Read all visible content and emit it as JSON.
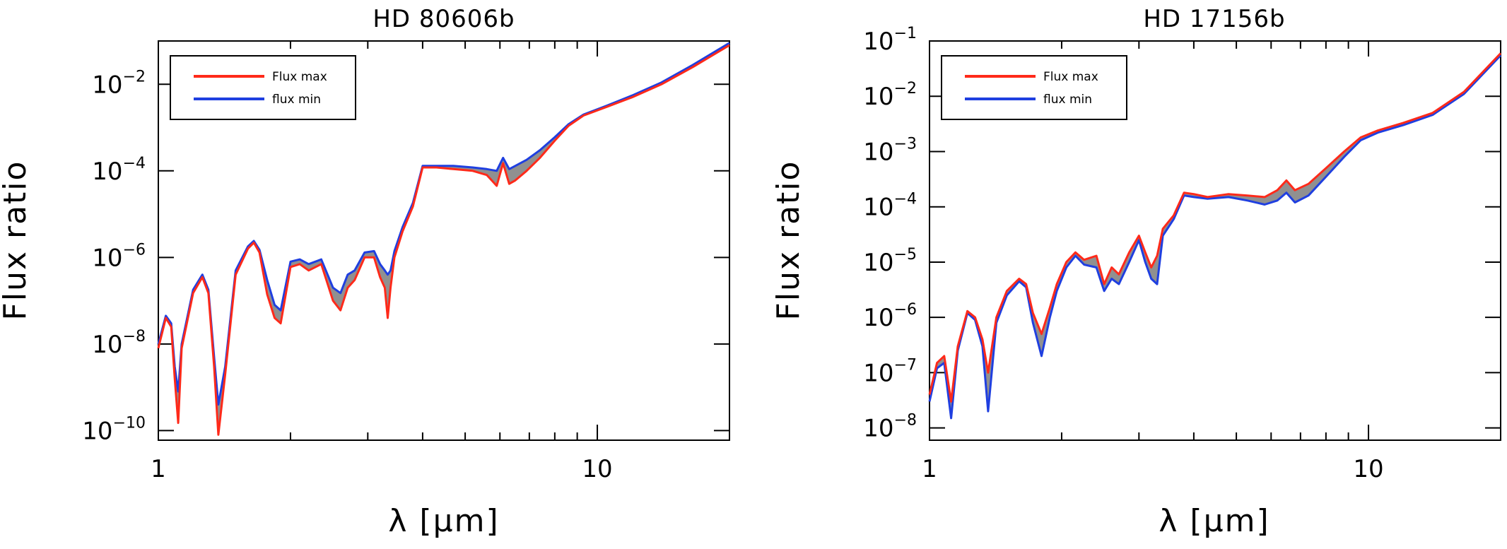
{
  "chart_data": [
    {
      "type": "line",
      "title": "HD 80606b",
      "xlabel": "λ [μm]",
      "ylabel": "Flux ratio",
      "xscale": "log",
      "yscale": "log",
      "xlim": [
        1,
        20
      ],
      "ylim": [
        6e-11,
        0.1
      ],
      "xticks": [
        {
          "value": 1,
          "label": "1"
        },
        {
          "value": 10,
          "label": "10"
        }
      ],
      "yticks": [
        {
          "value": 1e-10,
          "base": "10",
          "exp": "−10"
        },
        {
          "value": 1e-08,
          "base": "10",
          "exp": "−8"
        },
        {
          "value": 1e-06,
          "base": "10",
          "exp": "−6"
        },
        {
          "value": 0.0001,
          "base": "10",
          "exp": "−4"
        },
        {
          "value": 0.01,
          "base": "10",
          "exp": "−2"
        }
      ],
      "legend": {
        "position": "top-left",
        "entries": [
          {
            "label": "Flux max",
            "color": "#ff2a1a"
          },
          {
            "label": "flux min",
            "color": "#1f3fe0"
          }
        ]
      },
      "series": [
        {
          "name": "Flux max",
          "color": "#ff2a1a",
          "x": [
            1.0,
            1.04,
            1.07,
            1.09,
            1.11,
            1.13,
            1.2,
            1.26,
            1.3,
            1.34,
            1.37,
            1.42,
            1.5,
            1.6,
            1.65,
            1.7,
            1.77,
            1.84,
            1.9,
            2.0,
            2.1,
            2.2,
            2.35,
            2.5,
            2.6,
            2.7,
            2.8,
            2.95,
            3.1,
            3.2,
            3.28,
            3.33,
            3.38,
            3.45,
            3.6,
            3.8,
            4.0,
            4.3,
            4.7,
            5.2,
            5.6,
            5.9,
            6.1,
            6.3,
            6.5,
            6.9,
            7.4,
            8.0,
            8.6,
            9.3,
            10.5,
            12.0,
            14.0,
            16.5,
            20.0
          ],
          "y": [
            8e-09,
            4e-08,
            2.5e-08,
            1.6e-09,
            1.5e-10,
            8e-09,
            1.5e-07,
            3.5e-07,
            1.5e-07,
            3e-09,
            8e-11,
            2e-09,
            4e-07,
            1.6e-06,
            2.2e-06,
            1.3e-06,
            1.4e-07,
            4e-08,
            3e-08,
            6e-07,
            7e-07,
            5e-07,
            7e-07,
            1e-07,
            6e-08,
            2e-07,
            3e-07,
            1e-06,
            1e-06,
            3.5e-07,
            2e-07,
            4e-08,
            2e-07,
            1e-06,
            4e-06,
            1.5e-05,
            0.00012,
            0.00012,
            0.00011,
            0.0001,
            8e-05,
            4.5e-05,
            0.00015,
            5e-05,
            6e-05,
            0.0001,
            0.0002,
            0.0005,
            0.0011,
            0.0019,
            0.003,
            0.005,
            0.01,
            0.025,
            0.08
          ]
        },
        {
          "name": "flux min",
          "color": "#1f3fe0",
          "x": [
            1.0,
            1.04,
            1.07,
            1.09,
            1.11,
            1.13,
            1.2,
            1.26,
            1.3,
            1.34,
            1.37,
            1.42,
            1.5,
            1.6,
            1.65,
            1.7,
            1.77,
            1.84,
            1.9,
            2.0,
            2.1,
            2.2,
            2.35,
            2.5,
            2.6,
            2.7,
            2.8,
            2.95,
            3.1,
            3.2,
            3.28,
            3.33,
            3.38,
            3.45,
            3.6,
            3.8,
            4.0,
            4.3,
            4.7,
            5.2,
            5.6,
            5.9,
            6.1,
            6.3,
            6.5,
            6.9,
            7.4,
            8.0,
            8.6,
            9.3,
            10.5,
            12.0,
            14.0,
            16.5,
            20.0
          ],
          "y": [
            1e-08,
            4.5e-08,
            3e-08,
            3e-09,
            8e-10,
            1e-08,
            1.8e-07,
            4e-07,
            1.8e-07,
            5e-09,
            4e-10,
            3e-09,
            5e-07,
            1.8e-06,
            2.4e-06,
            1.5e-06,
            3e-07,
            8e-08,
            6e-08,
            8e-07,
            9e-07,
            7e-07,
            9e-07,
            2e-07,
            1.5e-07,
            4e-07,
            5e-07,
            1.3e-06,
            1.4e-06,
            7e-07,
            5e-07,
            4e-07,
            5e-07,
            1.4e-06,
            5e-06,
            1.8e-05,
            0.00013,
            0.00013,
            0.00013,
            0.00012,
            0.00011,
            0.0001,
            0.0002,
            0.00011,
            0.00013,
            0.00018,
            0.0003,
            0.0006,
            0.0012,
            0.002,
            0.0032,
            0.0055,
            0.011,
            0.028,
            0.09
          ]
        }
      ]
    },
    {
      "type": "line",
      "title": "HD 17156b",
      "xlabel": "λ [μm]",
      "ylabel": "Flux ratio",
      "xscale": "log",
      "yscale": "log",
      "xlim": [
        1,
        20
      ],
      "ylim": [
        6e-09,
        0.1
      ],
      "xticks": [
        {
          "value": 1,
          "label": "1"
        },
        {
          "value": 10,
          "label": "10"
        }
      ],
      "yticks": [
        {
          "value": 1e-08,
          "base": "10",
          "exp": "−8"
        },
        {
          "value": 1e-07,
          "base": "10",
          "exp": "−7"
        },
        {
          "value": 1e-06,
          "base": "10",
          "exp": "−6"
        },
        {
          "value": 1e-05,
          "base": "10",
          "exp": "−5"
        },
        {
          "value": 0.0001,
          "base": "10",
          "exp": "−4"
        },
        {
          "value": 0.001,
          "base": "10",
          "exp": "−3"
        },
        {
          "value": 0.01,
          "base": "10",
          "exp": "−2"
        },
        {
          "value": 0.1,
          "base": "10",
          "exp": "−1"
        }
      ],
      "legend": {
        "position": "top-left",
        "entries": [
          {
            "label": "Flux max",
            "color": "#ff2a1a"
          },
          {
            "label": "flux min",
            "color": "#1f3fe0"
          }
        ]
      },
      "series": [
        {
          "name": "Flux max",
          "color": "#ff2a1a",
          "x": [
            1.0,
            1.04,
            1.08,
            1.12,
            1.16,
            1.22,
            1.27,
            1.32,
            1.36,
            1.42,
            1.5,
            1.6,
            1.66,
            1.72,
            1.8,
            1.88,
            1.95,
            2.05,
            2.15,
            2.25,
            2.4,
            2.5,
            2.6,
            2.7,
            2.85,
            3.0,
            3.1,
            3.2,
            3.3,
            3.4,
            3.6,
            3.8,
            4.0,
            4.3,
            4.8,
            5.3,
            5.8,
            6.2,
            6.5,
            6.8,
            7.3,
            8.0,
            8.8,
            9.6,
            10.5,
            12.0,
            14.0,
            16.5,
            20.0
          ],
          "y": [
            4e-08,
            1.5e-07,
            2e-07,
            3e-08,
            3e-07,
            1.3e-06,
            1e-06,
            4e-07,
            1e-07,
            1e-06,
            3e-06,
            5e-06,
            4e-06,
            1.2e-06,
            5e-07,
            1.5e-06,
            4e-06,
            1e-05,
            1.5e-05,
            1.1e-05,
            1.3e-05,
            4e-06,
            8e-06,
            6e-06,
            1.5e-05,
            3e-05,
            1.5e-05,
            8e-06,
            1.3e-05,
            4e-05,
            7e-05,
            0.00018,
            0.00017,
            0.00015,
            0.00017,
            0.00016,
            0.00015,
            0.0002,
            0.0003,
            0.0002,
            0.00026,
            0.0005,
            0.001,
            0.0018,
            0.0024,
            0.0033,
            0.005,
            0.012,
            0.06
          ]
        },
        {
          "name": "flux min",
          "color": "#1f3fe0",
          "x": [
            1.0,
            1.04,
            1.08,
            1.12,
            1.16,
            1.22,
            1.27,
            1.32,
            1.36,
            1.42,
            1.5,
            1.6,
            1.66,
            1.72,
            1.8,
            1.88,
            1.95,
            2.05,
            2.15,
            2.25,
            2.4,
            2.5,
            2.6,
            2.7,
            2.85,
            3.0,
            3.1,
            3.2,
            3.3,
            3.4,
            3.6,
            3.8,
            4.0,
            4.3,
            4.8,
            5.3,
            5.8,
            6.2,
            6.5,
            6.8,
            7.3,
            8.0,
            8.8,
            9.6,
            10.5,
            12.0,
            14.0,
            16.5,
            20.0
          ],
          "y": [
            3e-08,
            1.2e-07,
            1.5e-07,
            1.5e-08,
            2.5e-07,
            1.2e-06,
            9e-07,
            3e-07,
            2e-08,
            8e-07,
            2.5e-06,
            4.5e-06,
            3.5e-06,
            8e-07,
            2e-07,
            1e-06,
            3e-06,
            8e-06,
            1.3e-05,
            9e-06,
            8e-06,
            3e-06,
            5e-06,
            4e-06,
            1e-05,
            2.5e-05,
            1e-05,
            5e-06,
            4e-06,
            3e-05,
            6e-05,
            0.00016,
            0.00015,
            0.00014,
            0.00015,
            0.00013,
            0.00011,
            0.00013,
            0.00018,
            0.00012,
            0.00016,
            0.00035,
            0.0008,
            0.0016,
            0.0022,
            0.003,
            0.0046,
            0.011,
            0.055
          ]
        }
      ]
    }
  ]
}
